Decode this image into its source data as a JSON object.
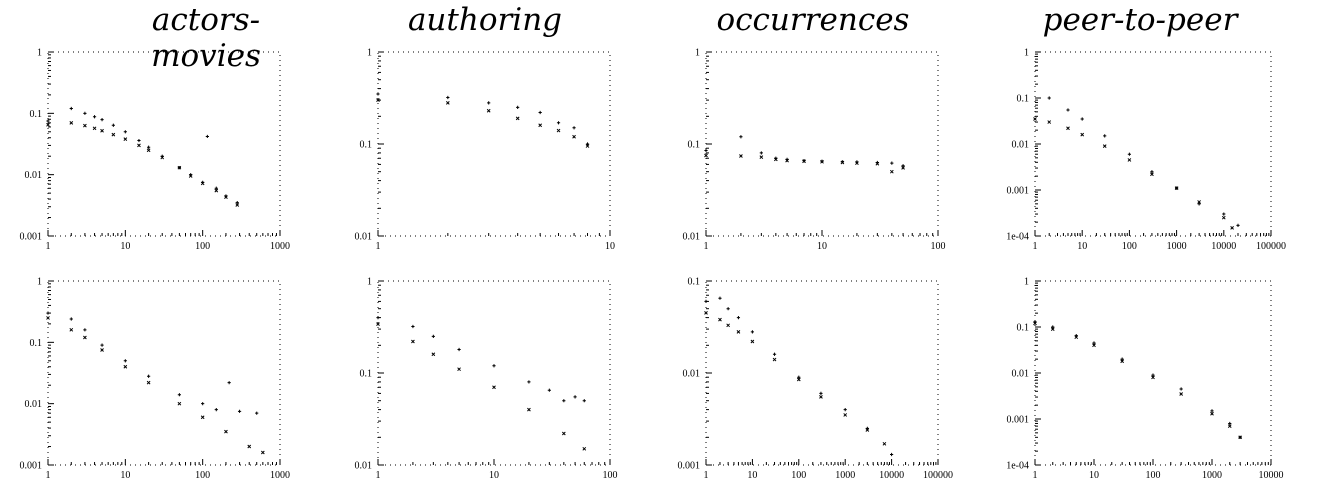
{
  "figure": {
    "column_titles": [
      "actors-movies",
      "authoring",
      "occurrences",
      "peer-to-peer"
    ]
  },
  "chart_data": [
    {
      "type": "scatter",
      "log_x": true,
      "log_y": true,
      "grid": false,
      "column": "actors-movies",
      "row": 1,
      "xlim": [
        1,
        1000
      ],
      "ylim": [
        0.001,
        1
      ],
      "x_ticks": [
        "1",
        "10",
        "100",
        "1000"
      ],
      "y_ticks": [
        "0.001",
        "0.01",
        "0.1",
        "1"
      ],
      "series": [
        {
          "marker": "plus",
          "points": [
            [
              1,
              0.075
            ],
            [
              2,
              0.12
            ],
            [
              3,
              0.1
            ],
            [
              4,
              0.088
            ],
            [
              5,
              0.079
            ],
            [
              7,
              0.064
            ],
            [
              10,
              0.05
            ],
            [
              15,
              0.036
            ],
            [
              20,
              0.028
            ],
            [
              30,
              0.02
            ],
            [
              50,
              0.013
            ],
            [
              70,
              0.01
            ],
            [
              100,
              0.0075
            ],
            [
              115,
              0.042
            ],
            [
              150,
              0.006
            ],
            [
              200,
              0.0045
            ],
            [
              280,
              0.0035
            ]
          ]
        },
        {
          "marker": "cross",
          "points": [
            [
              1,
              0.065
            ],
            [
              2,
              0.07
            ],
            [
              3,
              0.063
            ],
            [
              4,
              0.057
            ],
            [
              5,
              0.052
            ],
            [
              7,
              0.045
            ],
            [
              10,
              0.038
            ],
            [
              15,
              0.03
            ],
            [
              20,
              0.025
            ],
            [
              30,
              0.019
            ],
            [
              50,
              0.013
            ],
            [
              70,
              0.0095
            ],
            [
              100,
              0.0072
            ],
            [
              150,
              0.0055
            ],
            [
              200,
              0.0043
            ],
            [
              280,
              0.0032
            ]
          ]
        }
      ]
    },
    {
      "type": "scatter",
      "log_x": true,
      "log_y": true,
      "grid": false,
      "column": "authoring",
      "row": 1,
      "xlim": [
        1,
        10
      ],
      "ylim": [
        0.01,
        1
      ],
      "x_ticks": [
        "1",
        "10"
      ],
      "y_ticks": [
        "0.01",
        "0.1",
        "1"
      ],
      "series": [
        {
          "marker": "plus",
          "points": [
            [
              1,
              0.35
            ],
            [
              2,
              0.32
            ],
            [
              3,
              0.28
            ],
            [
              4,
              0.25
            ],
            [
              5,
              0.22
            ],
            [
              6,
              0.17
            ],
            [
              7,
              0.15
            ],
            [
              8,
              0.1
            ]
          ]
        },
        {
          "marker": "cross",
          "points": [
            [
              1,
              0.3
            ],
            [
              2,
              0.28
            ],
            [
              3,
              0.23
            ],
            [
              4,
              0.19
            ],
            [
              5,
              0.16
            ],
            [
              6,
              0.14
            ],
            [
              7,
              0.12
            ],
            [
              8,
              0.095
            ]
          ]
        }
      ]
    },
    {
      "type": "scatter",
      "log_x": true,
      "log_y": true,
      "grid": false,
      "column": "occurrences",
      "row": 1,
      "xlim": [
        1,
        100
      ],
      "ylim": [
        0.01,
        1
      ],
      "x_ticks": [
        "1",
        "10",
        "100"
      ],
      "y_ticks": [
        "0.01",
        "0.1",
        "1"
      ],
      "series": [
        {
          "marker": "plus",
          "points": [
            [
              1,
              0.085
            ],
            [
              2,
              0.12
            ],
            [
              3,
              0.08
            ],
            [
              4,
              0.07
            ],
            [
              5,
              0.068
            ],
            [
              7,
              0.066
            ],
            [
              10,
              0.065
            ],
            [
              15,
              0.064
            ],
            [
              20,
              0.064
            ],
            [
              30,
              0.063
            ],
            [
              40,
              0.062
            ],
            [
              50,
              0.058
            ]
          ]
        },
        {
          "marker": "cross",
          "points": [
            [
              1,
              0.075
            ],
            [
              2,
              0.074
            ],
            [
              3,
              0.072
            ],
            [
              4,
              0.068
            ],
            [
              5,
              0.066
            ],
            [
              7,
              0.065
            ],
            [
              10,
              0.064
            ],
            [
              15,
              0.063
            ],
            [
              20,
              0.062
            ],
            [
              30,
              0.061
            ],
            [
              40,
              0.05
            ],
            [
              50,
              0.055
            ]
          ]
        }
      ]
    },
    {
      "type": "scatter",
      "log_x": true,
      "log_y": true,
      "grid": false,
      "column": "peer-to-peer",
      "row": 1,
      "xlim": [
        1,
        100000
      ],
      "ylim": [
        0.0001,
        1
      ],
      "x_ticks": [
        "1",
        "10",
        "100",
        "1000",
        "10000",
        "100000"
      ],
      "y_ticks": [
        "1e-04",
        "0.001",
        "0.01",
        "0.1",
        "1"
      ],
      "series": [
        {
          "marker": "plus",
          "points": [
            [
              2,
              0.1
            ],
            [
              5,
              0.055
            ],
            [
              10,
              0.035
            ],
            [
              30,
              0.015
            ],
            [
              100,
              0.006
            ],
            [
              300,
              0.0025
            ],
            [
              1000,
              0.0011
            ],
            [
              3000,
              0.0005
            ],
            [
              10000,
              0.0003
            ],
            [
              20000,
              0.00017
            ]
          ]
        },
        {
          "marker": "cross",
          "points": [
            [
              1,
              0.035
            ],
            [
              2,
              0.03
            ],
            [
              5,
              0.022
            ],
            [
              10,
              0.016
            ],
            [
              30,
              0.009
            ],
            [
              100,
              0.0045
            ],
            [
              300,
              0.0022
            ],
            [
              1000,
              0.0011
            ],
            [
              3000,
              0.00055
            ],
            [
              10000,
              0.00025
            ],
            [
              15000,
              0.00015
            ]
          ]
        }
      ]
    },
    {
      "type": "scatter",
      "log_x": true,
      "log_y": true,
      "grid": false,
      "column": "actors-movies",
      "row": 2,
      "xlim": [
        1,
        1000
      ],
      "ylim": [
        0.001,
        1
      ],
      "x_ticks": [
        "1",
        "10",
        "100",
        "1000"
      ],
      "y_ticks": [
        "0.001",
        "0.01",
        "0.1",
        "1"
      ],
      "series": [
        {
          "marker": "plus",
          "points": [
            [
              1,
              0.3
            ],
            [
              2,
              0.24
            ],
            [
              3,
              0.16
            ],
            [
              5,
              0.09
            ],
            [
              10,
              0.05
            ],
            [
              20,
              0.028
            ],
            [
              50,
              0.014
            ],
            [
              100,
              0.01
            ],
            [
              150,
              0.008
            ],
            [
              220,
              0.022
            ],
            [
              300,
              0.0075
            ],
            [
              500,
              0.007
            ]
          ]
        },
        {
          "marker": "cross",
          "points": [
            [
              1,
              0.25
            ],
            [
              2,
              0.16
            ],
            [
              3,
              0.12
            ],
            [
              5,
              0.075
            ],
            [
              10,
              0.04
            ],
            [
              20,
              0.022
            ],
            [
              50,
              0.01
            ],
            [
              100,
              0.006
            ],
            [
              200,
              0.0035
            ],
            [
              400,
              0.002
            ],
            [
              600,
              0.0016
            ]
          ]
        }
      ]
    },
    {
      "type": "scatter",
      "log_x": true,
      "log_y": true,
      "grid": false,
      "column": "authoring",
      "row": 2,
      "xlim": [
        1,
        100
      ],
      "ylim": [
        0.01,
        1
      ],
      "x_ticks": [
        "1",
        "10",
        "100"
      ],
      "y_ticks": [
        "0.01",
        "0.1",
        "1"
      ],
      "series": [
        {
          "marker": "plus",
          "points": [
            [
              1,
              0.4
            ],
            [
              2,
              0.32
            ],
            [
              3,
              0.25
            ],
            [
              5,
              0.18
            ],
            [
              10,
              0.12
            ],
            [
              20,
              0.08
            ],
            [
              30,
              0.065
            ],
            [
              40,
              0.05
            ],
            [
              50,
              0.055
            ],
            [
              60,
              0.05
            ]
          ]
        },
        {
          "marker": "cross",
          "points": [
            [
              1,
              0.34
            ],
            [
              2,
              0.22
            ],
            [
              3,
              0.16
            ],
            [
              5,
              0.11
            ],
            [
              10,
              0.07
            ],
            [
              20,
              0.04
            ],
            [
              40,
              0.022
            ],
            [
              60,
              0.015
            ]
          ]
        }
      ]
    },
    {
      "type": "scatter",
      "log_x": true,
      "log_y": true,
      "grid": false,
      "column": "occurrences",
      "row": 2,
      "xlim": [
        1,
        100000
      ],
      "ylim": [
        0.001,
        0.1
      ],
      "x_ticks": [
        "1",
        "10",
        "100",
        "1000",
        "10000",
        "100000"
      ],
      "y_ticks": [
        "0.001",
        "0.01",
        "0.1"
      ],
      "series": [
        {
          "marker": "plus",
          "points": [
            [
              1,
              0.06
            ],
            [
              2,
              0.065
            ],
            [
              3,
              0.05
            ],
            [
              5,
              0.04
            ],
            [
              10,
              0.028
            ],
            [
              30,
              0.016
            ],
            [
              100,
              0.009
            ],
            [
              300,
              0.006
            ],
            [
              1000,
              0.004
            ],
            [
              3000,
              0.0025
            ],
            [
              10000,
              0.0013
            ]
          ]
        },
        {
          "marker": "cross",
          "points": [
            [
              1,
              0.045
            ],
            [
              2,
              0.038
            ],
            [
              3,
              0.033
            ],
            [
              5,
              0.028
            ],
            [
              10,
              0.022
            ],
            [
              30,
              0.014
            ],
            [
              100,
              0.0085
            ],
            [
              300,
              0.0055
            ],
            [
              1000,
              0.0035
            ],
            [
              3000,
              0.0024
            ],
            [
              7000,
              0.0017
            ]
          ]
        }
      ]
    },
    {
      "type": "scatter",
      "log_x": true,
      "log_y": true,
      "grid": false,
      "column": "peer-to-peer",
      "row": 2,
      "xlim": [
        1,
        10000
      ],
      "ylim": [
        0.0001,
        1
      ],
      "x_ticks": [
        "1",
        "10",
        "100",
        "1000",
        "10000"
      ],
      "y_ticks": [
        "1e-04",
        "0.001",
        "0.01",
        "0.1",
        "1"
      ],
      "series": [
        {
          "marker": "plus",
          "points": [
            [
              1,
              0.13
            ],
            [
              2,
              0.1
            ],
            [
              5,
              0.065
            ],
            [
              10,
              0.045
            ],
            [
              30,
              0.02
            ],
            [
              100,
              0.009
            ],
            [
              300,
              0.0045
            ],
            [
              1000,
              0.0015
            ],
            [
              2000,
              0.0008
            ],
            [
              3000,
              0.0004
            ]
          ]
        },
        {
          "marker": "cross",
          "points": [
            [
              1,
              0.12
            ],
            [
              2,
              0.09
            ],
            [
              5,
              0.06
            ],
            [
              10,
              0.04
            ],
            [
              30,
              0.018
            ],
            [
              100,
              0.008
            ],
            [
              300,
              0.0035
            ],
            [
              1000,
              0.0013
            ],
            [
              2000,
              0.0007
            ],
            [
              3000,
              0.0004
            ]
          ]
        }
      ]
    }
  ]
}
